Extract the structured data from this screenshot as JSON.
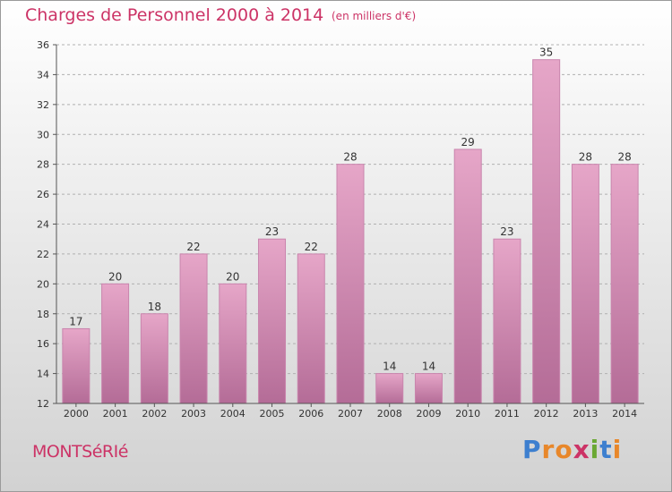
{
  "header": {
    "title": "Charges de Personnel 2000 à 2014",
    "subtitle": "(en milliers d'€)"
  },
  "footer": {
    "town": "MONTSéRIé",
    "brand": "Proxiti"
  },
  "colors": {
    "accent": "#cc3366",
    "bar_light": "#e6a6c8",
    "bar_dark": "#b46c97",
    "brand_letters": [
      "#3d7fcf",
      "#e8872a",
      "#e8872a",
      "#cc3366",
      "#6aa833",
      "#3d7fcf",
      "#e8872a"
    ]
  },
  "chart_data": {
    "type": "bar",
    "categories": [
      "2000",
      "2001",
      "2002",
      "2003",
      "2004",
      "2005",
      "2006",
      "2007",
      "2008",
      "2009",
      "2010",
      "2011",
      "2012",
      "2013",
      "2014"
    ],
    "values": [
      17,
      20,
      18,
      22,
      20,
      23,
      22,
      28,
      14,
      14,
      29,
      23,
      35,
      28,
      28
    ],
    "ylim": [
      12,
      36
    ],
    "yticks": [
      12,
      14,
      16,
      18,
      20,
      22,
      24,
      26,
      28,
      30,
      32,
      34,
      36
    ],
    "grid": "horizontal-dashed",
    "title": "Charges de Personnel 2000 à 2014",
    "xlabel": "",
    "ylabel": ""
  }
}
